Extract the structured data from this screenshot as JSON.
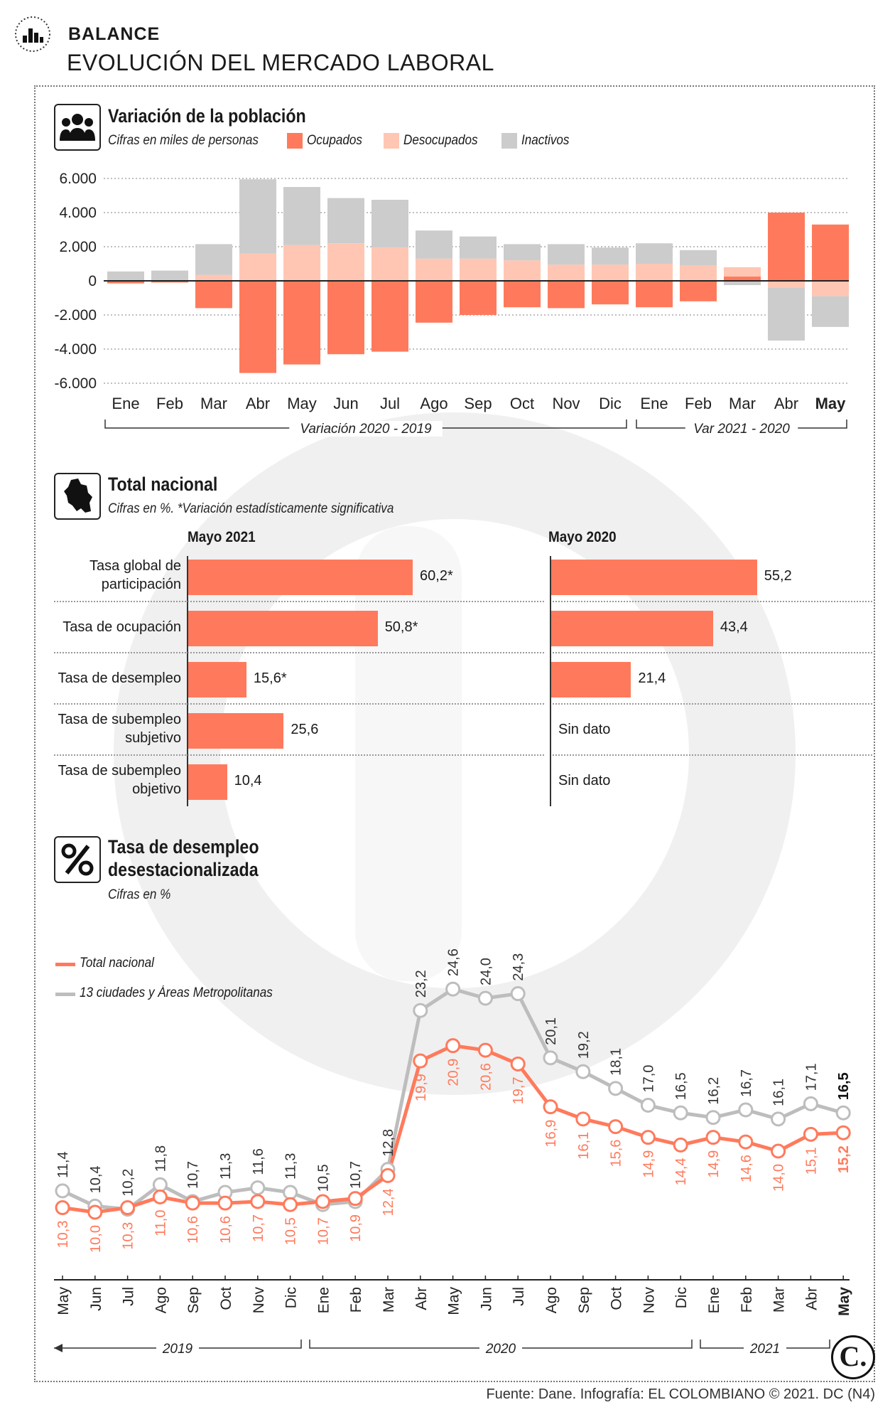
{
  "header": {
    "kicker": "BALANCE",
    "title": "EVOLUCIÓN DEL MERCADO LABORAL"
  },
  "colors": {
    "ocupados": "#ff7a5c",
    "desocupados": "#ffc6b3",
    "inactivos": "#cccccc",
    "total_line": "#ff7a5c",
    "cities_line": "#bdbdbd"
  },
  "section1": {
    "title": "Variación de la población",
    "subtitle": "Cifras en miles de personas",
    "legend": [
      "Ocupados",
      "Desocupados",
      "Inactivos"
    ],
    "group_labels": [
      "Variación 2020 - 2019",
      "Var 2021 - 2020"
    ]
  },
  "section2": {
    "title": "Total nacional",
    "subtitle": "Cifras en %.  *Variación estadísticamente significativa",
    "col_left": "Mayo 2021",
    "col_right": "Mayo 2020",
    "rows": [
      {
        "label": "Tasa global de participación",
        "v2021": 60.2,
        "t2021": "60,2*",
        "v2020": 55.2,
        "t2020": "55,2"
      },
      {
        "label": "Tasa de ocupación",
        "v2021": 50.8,
        "t2021": "50,8*",
        "v2020": 43.4,
        "t2020": "43,4"
      },
      {
        "label": "Tasa de desempleo",
        "v2021": 15.6,
        "t2021": "15,6*",
        "v2020": 21.4,
        "t2020": "21,4"
      },
      {
        "label": "Tasa de subempleo subjetivo",
        "v2021": 25.6,
        "t2021": "25,6",
        "v2020": null,
        "t2020": "Sin dato"
      },
      {
        "label": "Tasa de subempleo objetivo",
        "v2021": 10.4,
        "t2021": "10,4",
        "v2020": null,
        "t2020": "Sin dato"
      }
    ]
  },
  "section3": {
    "title_line1": "Tasa de desempleo",
    "title_line2": "desestacionalizada",
    "subtitle": "Cifras en %",
    "legend": [
      "Total nacional",
      "13 ciudades y Áreas Metropolitanas"
    ],
    "year_labels": [
      "2019",
      "2020",
      "2021"
    ]
  },
  "footer": {
    "source": "Fuente: Dane. Infografía: EL COLOMBIANO © 2021. DC (N4)",
    "logo": "C."
  },
  "chart_data": [
    {
      "type": "bar",
      "title": "Variación de la población",
      "ylabel": "Cifras en miles de personas",
      "ylim": [
        -6000,
        6000
      ],
      "yticks": [
        6000,
        4000,
        2000,
        0,
        -2000,
        -4000,
        -6000
      ],
      "ytick_labels": [
        "6.000",
        "4.000",
        "2.000",
        "0",
        "-2.000",
        "-4.000",
        "-6.000"
      ],
      "categories": [
        "Ene",
        "Feb",
        "Mar",
        "Abr",
        "May",
        "Jun",
        "Jul",
        "Ago",
        "Sep",
        "Oct",
        "Nov",
        "Dic",
        "Ene",
        "Feb",
        "Mar",
        "Abr",
        "May"
      ],
      "series": [
        {
          "name": "Ocupados",
          "values": [
            -150,
            -100,
            -1600,
            -5400,
            -4900,
            -4300,
            -4150,
            -2450,
            -2000,
            -1550,
            -1600,
            -1380,
            -1550,
            -1200,
            250,
            4000,
            3300
          ]
        },
        {
          "name": "Desocupados",
          "values": [
            0,
            0,
            350,
            1600,
            2100,
            2200,
            1950,
            1300,
            1300,
            1200,
            950,
            950,
            1000,
            900,
            550,
            -400,
            -900
          ]
        },
        {
          "name": "Inactivos",
          "values": [
            550,
            600,
            1800,
            4350,
            3400,
            2650,
            2800,
            1650,
            1300,
            950,
            1200,
            1000,
            1200,
            900,
            -250,
            -3100,
            -1800
          ]
        }
      ]
    },
    {
      "type": "line",
      "title": "Tasa de desempleo desestacionalizada",
      "ylabel": "Cifras en %",
      "x": [
        "May",
        "Jun",
        "Jul",
        "Ago",
        "Sep",
        "Oct",
        "Nov",
        "Dic",
        "Ene",
        "Feb",
        "Mar",
        "Abr",
        "May",
        "Jun",
        "Jul",
        "Ago",
        "Sep",
        "Oct",
        "Nov",
        "Dic",
        "Ene",
        "Feb",
        "Mar",
        "Abr",
        "May"
      ],
      "series": [
        {
          "name": "Total nacional",
          "values": [
            10.3,
            10.0,
            10.3,
            11.0,
            10.6,
            10.6,
            10.7,
            10.5,
            10.7,
            10.9,
            12.4,
            19.9,
            20.9,
            20.6,
            19.7,
            16.9,
            16.1,
            15.6,
            14.9,
            14.4,
            14.9,
            14.6,
            14.0,
            15.1,
            15.2
          ],
          "labels": [
            "10,3",
            "10,0",
            "10,3",
            "11,0",
            "10,6",
            "10,6",
            "10,7",
            "10,5",
            "10,7",
            "10,9",
            "12,4",
            "19,9",
            "20,9",
            "20,6",
            "19,7",
            "16,9",
            "16,1",
            "15,6",
            "14,9",
            "14,4",
            "14,9",
            "14,6",
            "14,0",
            "15,1",
            "15,2"
          ]
        },
        {
          "name": "13 ciudades y Áreas Metropolitanas",
          "values": [
            11.4,
            10.4,
            10.2,
            11.8,
            10.7,
            11.3,
            11.6,
            11.3,
            10.5,
            10.7,
            12.8,
            23.2,
            24.6,
            24.0,
            24.3,
            20.1,
            19.2,
            18.1,
            17.0,
            16.5,
            16.2,
            16.7,
            16.1,
            17.1,
            16.5
          ],
          "labels": [
            "11,4",
            "10,4",
            "10,2",
            "11,8",
            "10,7",
            "11,3",
            "11,6",
            "11,3",
            "10,5",
            "10,7",
            "12,8",
            "23,2",
            "24,6",
            "24,0",
            "24,3",
            "20,1",
            "19,2",
            "18,1",
            "17,0",
            "16,5",
            "16,2",
            "16,7",
            "16,1",
            "17,1",
            "16,5"
          ]
        }
      ]
    }
  ]
}
